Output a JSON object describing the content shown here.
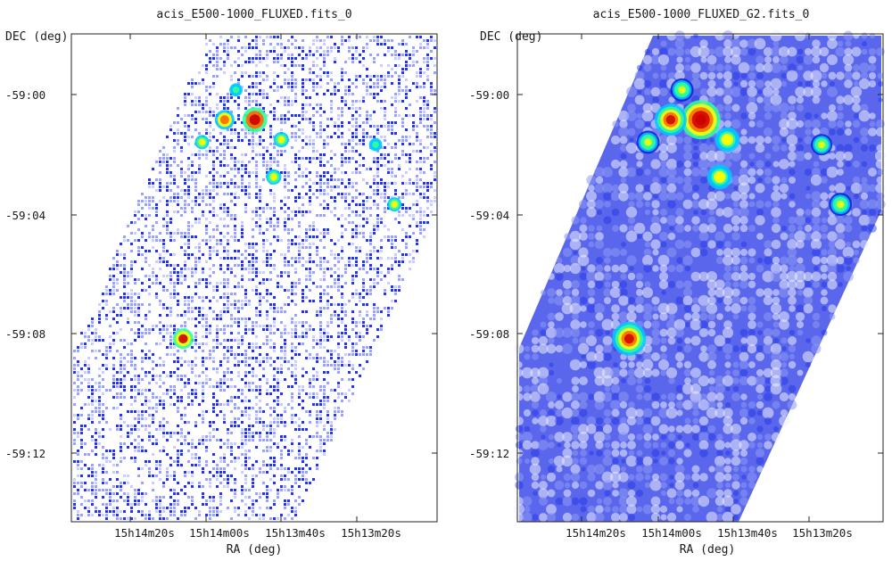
{
  "chart_data": [
    {
      "type": "heatmap",
      "title": "acis_E500-1000_FLUXED.fits_0",
      "xlabel": "RA (deg)",
      "ylabel": "DEC (deg)",
      "x_ticks": [
        "15h14m20s",
        "15h14m00s",
        "15h13m40s",
        "15h13m20s"
      ],
      "y_ticks": [
        "-59:00",
        "-59:04",
        "-59:08",
        "-59:12"
      ],
      "smoothing": "none",
      "colormap": [
        "#ffffff",
        "#c8cdfa",
        "#7d8af5",
        "#2f3ff0",
        "#0a1fd6",
        "#00c8ff",
        "#33ff99",
        "#ffff00",
        "#ff6600",
        "#cc0000"
      ],
      "sources": [
        {
          "ra": "15h13m47s",
          "dec": "-59:00:50",
          "intensity": 1.0
        },
        {
          "ra": "15h13m55s",
          "dec": "-59:00:50",
          "intensity": 0.75
        },
        {
          "ra": "15h13m40s",
          "dec": "-59:01:30",
          "intensity": 0.55
        },
        {
          "ra": "15h14m01s",
          "dec": "-59:01:35",
          "intensity": 0.5
        },
        {
          "ra": "15h13m42s",
          "dec": "-59:02:45",
          "intensity": 0.55
        },
        {
          "ra": "15h13m52s",
          "dec": "-58:59:50",
          "intensity": 0.45
        },
        {
          "ra": "15h13m15s",
          "dec": "-59:01:40",
          "intensity": 0.45
        },
        {
          "ra": "15h13m10s",
          "dec": "-59:03:40",
          "intensity": 0.5
        },
        {
          "ra": "15h14m06s",
          "dec": "-59:08:10",
          "intensity": 0.8
        }
      ]
    },
    {
      "type": "heatmap",
      "title": "acis_E500-1000_FLUXED_G2.fits_0",
      "xlabel": "RA (deg)",
      "ylabel": "DEC (deg)",
      "x_ticks": [
        "15h14m20s",
        "15h14m00s",
        "15h13m40s",
        "15h13m20s"
      ],
      "y_ticks": [
        "-59:00",
        "-59:04",
        "-59:08",
        "-59:12"
      ],
      "smoothing": "gaussian",
      "colormap": [
        "#ffffff",
        "#c8cdfa",
        "#7d8af5",
        "#2f3ff0",
        "#0a1fd6",
        "#00c8ff",
        "#33ff99",
        "#ffff00",
        "#ff6600",
        "#cc0000"
      ],
      "sources": [
        {
          "ra": "15h13m47s",
          "dec": "-59:00:50",
          "intensity": 1.0
        },
        {
          "ra": "15h13m55s",
          "dec": "-59:00:50",
          "intensity": 0.8
        },
        {
          "ra": "15h13m40s",
          "dec": "-59:01:30",
          "intensity": 0.6
        },
        {
          "ra": "15h14m01s",
          "dec": "-59:01:35",
          "intensity": 0.55
        },
        {
          "ra": "15h13m42s",
          "dec": "-59:02:45",
          "intensity": 0.6
        },
        {
          "ra": "15h13m52s",
          "dec": "-58:59:50",
          "intensity": 0.55
        },
        {
          "ra": "15h13m15s",
          "dec": "-59:01:40",
          "intensity": 0.5
        },
        {
          "ra": "15h13m10s",
          "dec": "-59:03:40",
          "intensity": 0.55
        },
        {
          "ra": "15h14m06s",
          "dec": "-59:08:10",
          "intensity": 0.85
        }
      ]
    }
  ]
}
